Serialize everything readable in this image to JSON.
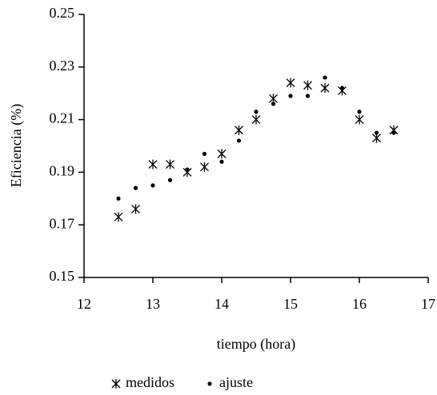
{
  "chart_data": {
    "type": "scatter",
    "x_label": "tiempo (hora)",
    "y_label": "Eficiencia (%)",
    "x": [
      12.5,
      12.75,
      13,
      13.25,
      13.5,
      13.75,
      14,
      14.25,
      14.5,
      14.75,
      15,
      15.25,
      15.5,
      15.75,
      16,
      16.25,
      16.5
    ],
    "series": [
      {
        "name": "medidos",
        "color": "#000000",
        "marker": "asterisk",
        "values": [
          0.173,
          0.176,
          0.193,
          0.193,
          0.19,
          0.192,
          0.197,
          0.206,
          0.21,
          0.218,
          0.224,
          0.223,
          0.222,
          0.221,
          0.21,
          0.203,
          0.206
        ]
      },
      {
        "name": "ajuste",
        "color": "#000000",
        "marker": "dot",
        "values": [
          0.18,
          0.184,
          0.185,
          0.187,
          0.191,
          0.197,
          0.194,
          0.202,
          0.213,
          0.216,
          0.219,
          0.219,
          0.226,
          0.222,
          0.213,
          0.205,
          0.205
        ]
      }
    ],
    "xlim": [
      12,
      17
    ],
    "xticks": [
      12,
      13,
      14,
      15,
      16,
      17
    ],
    "ylim": [
      0.15,
      0.25
    ],
    "yticks": [
      0.15,
      0.17,
      0.19,
      0.21,
      0.23,
      0.25
    ],
    "grid": false,
    "legend": "bottom"
  }
}
